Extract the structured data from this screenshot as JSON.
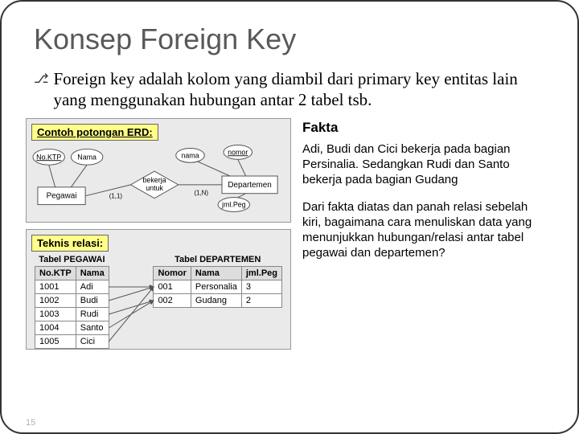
{
  "title": "Konsep Foreign Key",
  "description": "Foreign key adalah kolom yang diambil dari primary key entitas lain yang menggunakan hubungan antar 2 tabel tsb.",
  "bullet_glyph": "⎇",
  "left": {
    "erd_label": "Contoh potongan ERD:",
    "relasi_label": "Teknis relasi:",
    "erd": {
      "entities": {
        "pegawai": {
          "label": "Pegawai",
          "attrs": [
            "No.KTP",
            "Nama"
          ],
          "key_attr": 0
        },
        "departemen": {
          "label": "Departemen",
          "attrs": [
            "nama",
            "nomor",
            "jml.Peg"
          ],
          "key_attr": 1
        }
      },
      "relationship": {
        "label": "bekerja\nuntuk",
        "card_left": "(1,1)",
        "card_right": "(1,N)"
      },
      "colors": {
        "entity_fill": "#ffffff",
        "attr_fill": "#ffffff",
        "rel_fill": "#ffffff",
        "stroke": "#555555"
      }
    },
    "tables": {
      "pegawai": {
        "caption": "Tabel PEGAWAI",
        "columns": [
          "No.KTP",
          "Nama"
        ],
        "rows": [
          [
            "1001",
            "Adi"
          ],
          [
            "1002",
            "Budi"
          ],
          [
            "1003",
            "Rudi"
          ],
          [
            "1004",
            "Santo"
          ],
          [
            "1005",
            "Cici"
          ]
        ]
      },
      "departemen": {
        "caption": "Tabel DEPARTEMEN",
        "columns": [
          "Nomor",
          "Nama",
          "jml.Peg"
        ],
        "rows": [
          [
            "001",
            "Personalia",
            "3"
          ],
          [
            "002",
            "Gudang",
            "2"
          ]
        ]
      },
      "relations": [
        {
          "from_row": 0,
          "to_row": 0
        },
        {
          "from_row": 1,
          "to_row": 0
        },
        {
          "from_row": 2,
          "to_row": 1
        },
        {
          "from_row": 3,
          "to_row": 1
        },
        {
          "from_row": 4,
          "to_row": 0
        }
      ],
      "arrow_color": "#555555"
    }
  },
  "right": {
    "fakta_heading": "Fakta",
    "fakta_text": "Adi, Budi dan Cici bekerja pada bagian Persinalia. Sedangkan Rudi dan Santo bekerja pada bagian Gudang",
    "question_text": "Dari fakta diatas dan panah relasi sebelah kiri, bagaimana cara menuliskan data yang menunjukkan hubungan/relasi antar tabel pegawai dan departemen?"
  },
  "page_number": "15"
}
